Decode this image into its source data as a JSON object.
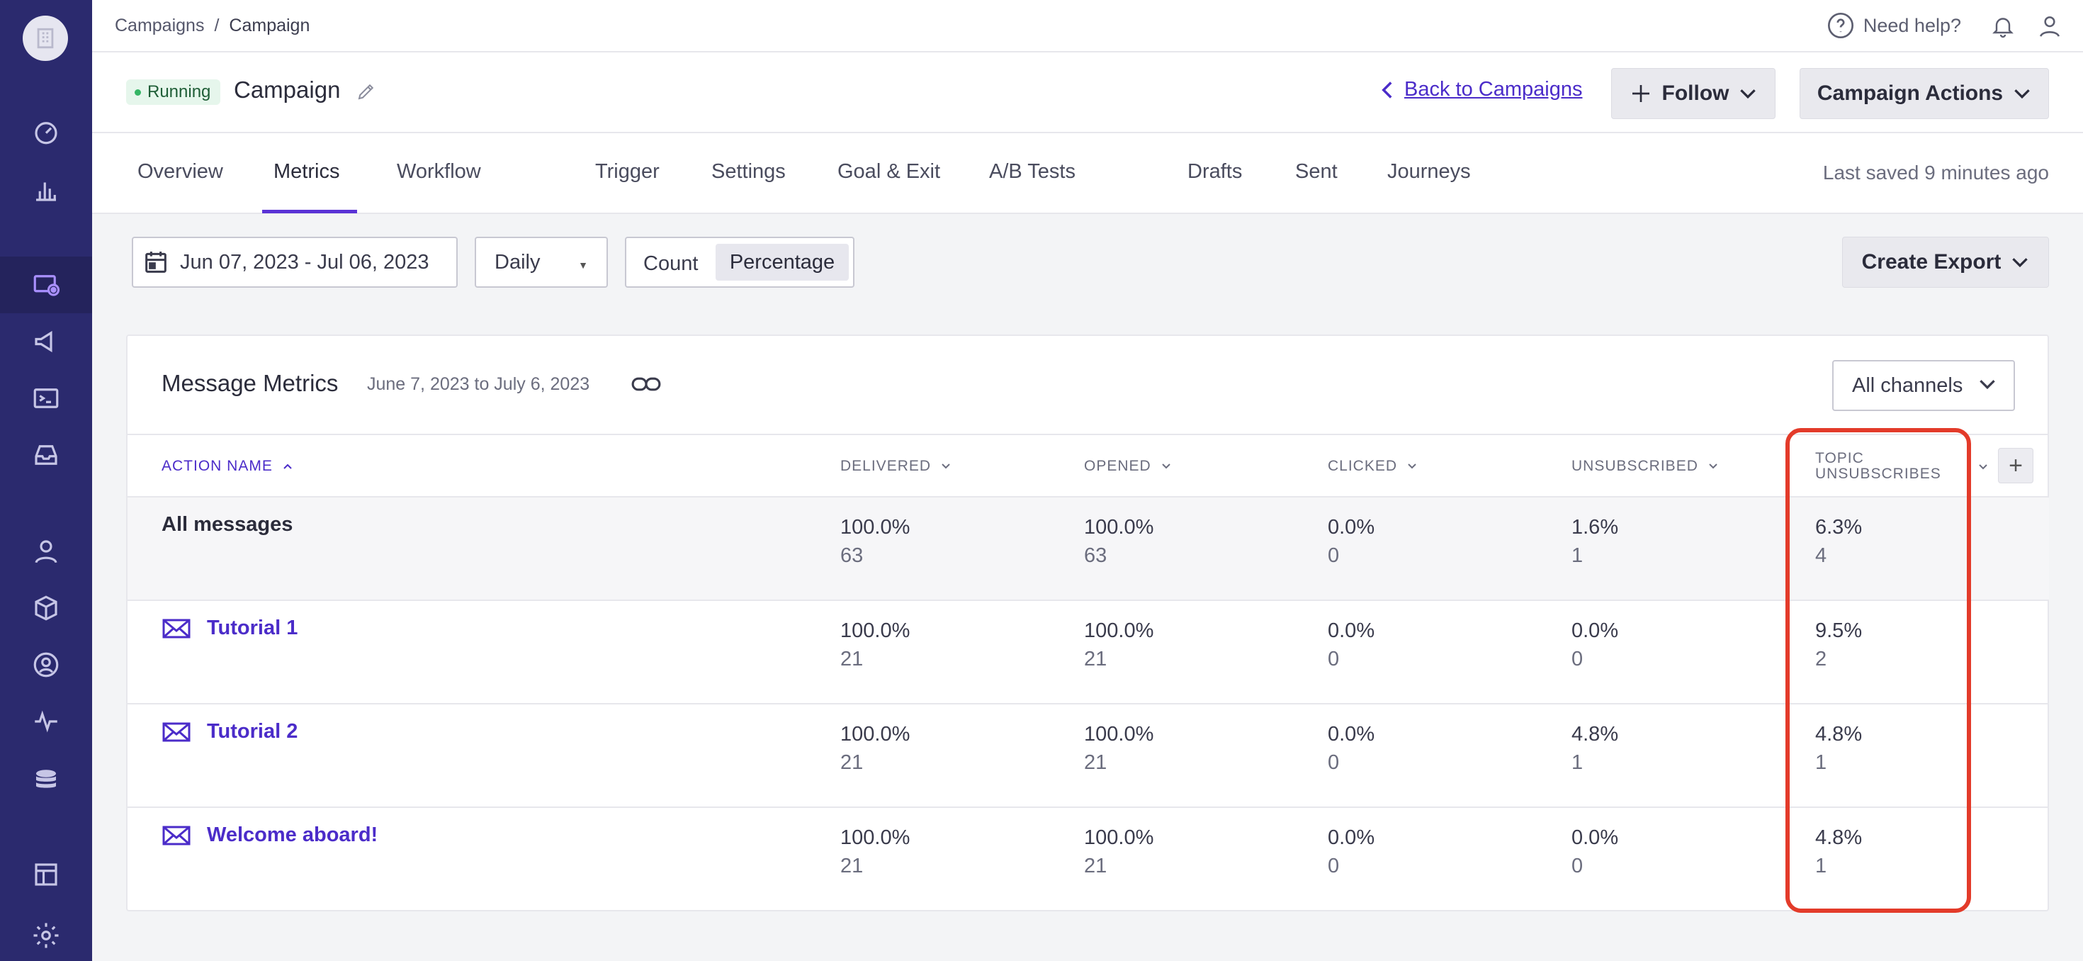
{
  "breadcrumb": {
    "root": "Campaigns",
    "separator": "/",
    "current": "Campaign"
  },
  "topbar": {
    "help_label": "Need help?"
  },
  "campaign": {
    "status": "Running",
    "title": "Campaign"
  },
  "header": {
    "back_label": "Back to Campaigns",
    "follow_label": "Follow",
    "actions_label": "Campaign Actions"
  },
  "tabs": [
    {
      "label": "Overview"
    },
    {
      "label": "Metrics"
    },
    {
      "label": "Workflow"
    },
    {
      "label": "Trigger"
    },
    {
      "label": "Settings"
    },
    {
      "label": "Goal & Exit"
    },
    {
      "label": "A/B Tests"
    },
    {
      "label": "Drafts"
    },
    {
      "label": "Sent"
    },
    {
      "label": "Journeys"
    }
  ],
  "active_tab": "Metrics",
  "last_saved": "Last saved 9 minutes ago",
  "controls": {
    "date_range": "Jun 07, 2023 - Jul 06, 2023",
    "interval": "Daily",
    "mode_count": "Count",
    "mode_percentage": "Percentage",
    "mode_selected": "Percentage",
    "export_label": "Create Export"
  },
  "metrics": {
    "title": "Message Metrics",
    "subtitle": "June 7, 2023 to July 6, 2023",
    "channel_filter": "All channels",
    "columns": {
      "action": "ACTION NAME",
      "delivered": "DELIVERED",
      "opened": "OPENED",
      "clicked": "CLICKED",
      "unsubscribed": "UNSUBSCRIBED",
      "topic_line1": "TOPIC",
      "topic_line2": "UNSUBSCRIBES"
    },
    "rows": [
      {
        "name": "All messages",
        "delivered_pct": "100.0%",
        "delivered": "63",
        "opened_pct": "100.0%",
        "opened": "63",
        "clicked_pct": "0.0%",
        "clicked": "0",
        "unsub_pct": "1.6%",
        "unsub": "1",
        "topic_pct": "6.3%",
        "topic": "4"
      },
      {
        "name": "Tutorial 1",
        "delivered_pct": "100.0%",
        "delivered": "21",
        "opened_pct": "100.0%",
        "opened": "21",
        "clicked_pct": "0.0%",
        "clicked": "0",
        "unsub_pct": "0.0%",
        "unsub": "0",
        "topic_pct": "9.5%",
        "topic": "2"
      },
      {
        "name": "Tutorial 2",
        "delivered_pct": "100.0%",
        "delivered": "21",
        "opened_pct": "100.0%",
        "opened": "21",
        "clicked_pct": "0.0%",
        "clicked": "0",
        "unsub_pct": "4.8%",
        "unsub": "1",
        "topic_pct": "4.8%",
        "topic": "1"
      },
      {
        "name": "Welcome aboard!",
        "delivered_pct": "100.0%",
        "delivered": "21",
        "opened_pct": "100.0%",
        "opened": "21",
        "clicked_pct": "0.0%",
        "clicked": "0",
        "unsub_pct": "0.0%",
        "unsub": "0",
        "topic_pct": "4.8%",
        "topic": "1"
      }
    ]
  },
  "colors": {
    "sidebar": "#2b2a6e",
    "accent": "#4b2cc9",
    "highlight": "#e33b2a",
    "running": "#35b565"
  }
}
